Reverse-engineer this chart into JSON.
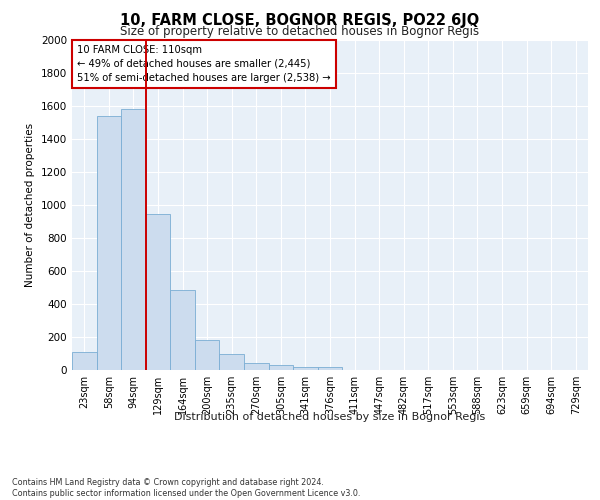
{
  "title": "10, FARM CLOSE, BOGNOR REGIS, PO22 6JQ",
  "subtitle": "Size of property relative to detached houses in Bognor Regis",
  "xlabel": "Distribution of detached houses by size in Bognor Regis",
  "ylabel": "Number of detached properties",
  "categories": [
    "23sqm",
    "58sqm",
    "94sqm",
    "129sqm",
    "164sqm",
    "200sqm",
    "235sqm",
    "270sqm",
    "305sqm",
    "341sqm",
    "376sqm",
    "411sqm",
    "447sqm",
    "482sqm",
    "517sqm",
    "553sqm",
    "588sqm",
    "623sqm",
    "659sqm",
    "694sqm",
    "729sqm"
  ],
  "values": [
    110,
    1540,
    1580,
    945,
    485,
    180,
    100,
    40,
    28,
    18,
    18,
    0,
    0,
    0,
    0,
    0,
    0,
    0,
    0,
    0,
    0
  ],
  "bar_color": "#ccdcee",
  "bar_edge_color": "#7aadd4",
  "background_color": "#e8f0f8",
  "grid_color": "#ffffff",
  "red_line_x": 2.5,
  "annotation_text": "10 FARM CLOSE: 110sqm\n← 49% of detached houses are smaller (2,445)\n51% of semi-detached houses are larger (2,538) →",
  "annotation_box_color": "#ffffff",
  "annotation_box_edge_color": "#cc0000",
  "ylim": [
    0,
    2000
  ],
  "yticks": [
    0,
    200,
    400,
    600,
    800,
    1000,
    1200,
    1400,
    1600,
    1800,
    2000
  ],
  "footer_line1": "Contains HM Land Registry data © Crown copyright and database right 2024.",
  "footer_line2": "Contains public sector information licensed under the Open Government Licence v3.0."
}
